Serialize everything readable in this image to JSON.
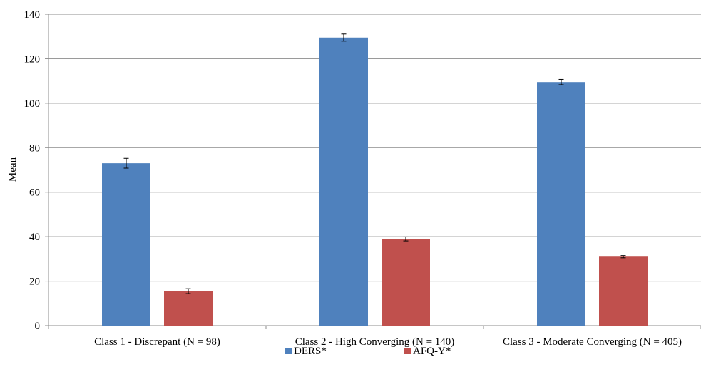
{
  "chart_data": {
    "type": "bar",
    "title": "",
    "xlabel": "",
    "ylabel": "Mean",
    "ylim": [
      0,
      140
    ],
    "yticks": [
      0,
      20,
      40,
      60,
      80,
      100,
      120,
      140
    ],
    "grid": true,
    "legend_position": "bottom",
    "categories": [
      "Class 1 - Discrepant (N = 98)",
      "Class 2 - High Converging (N = 140)",
      "Class 3 - Moderate Converging (N = 405)"
    ],
    "series": [
      {
        "name": "DERS*",
        "color": "#4F81BD",
        "values": [
          73,
          129.5,
          109.5
        ],
        "error": [
          2.2,
          1.6,
          1.2
        ]
      },
      {
        "name": "AFQ-Y*",
        "color": "#C0504D",
        "values": [
          15.5,
          39,
          31
        ],
        "error": [
          1.1,
          0.9,
          0.5
        ]
      }
    ]
  }
}
